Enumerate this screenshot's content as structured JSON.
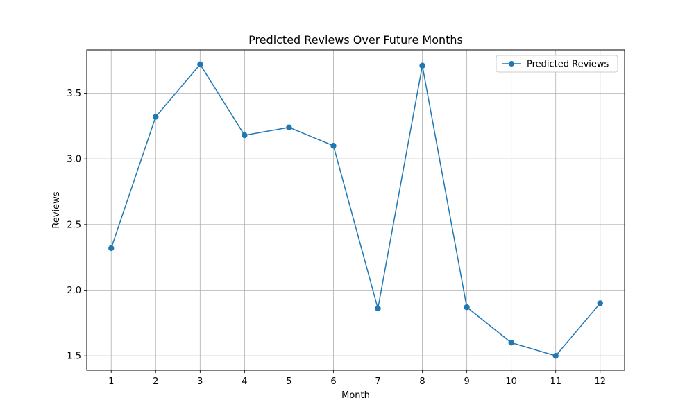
{
  "chart_data": {
    "type": "line",
    "title": "Predicted Reviews Over Future Months",
    "xlabel": "Month",
    "ylabel": "Reviews",
    "x": [
      1,
      2,
      3,
      4,
      5,
      6,
      7,
      8,
      9,
      10,
      11,
      12
    ],
    "series": [
      {
        "name": "Predicted Reviews",
        "values": [
          2.32,
          3.32,
          3.72,
          3.18,
          3.24,
          3.1,
          1.86,
          3.71,
          1.87,
          1.6,
          1.5,
          1.9
        ],
        "color": "#1f77b4",
        "marker": "circle"
      }
    ],
    "xticks": [
      "1",
      "2",
      "3",
      "4",
      "5",
      "6",
      "7",
      "8",
      "9",
      "10",
      "11",
      "12"
    ],
    "yticks": [
      "1.5",
      "2.0",
      "2.5",
      "3.0",
      "3.5"
    ],
    "xlim": [
      0.45,
      12.55
    ],
    "ylim": [
      1.39,
      3.83
    ],
    "grid": true,
    "legend_position": "top-right"
  }
}
